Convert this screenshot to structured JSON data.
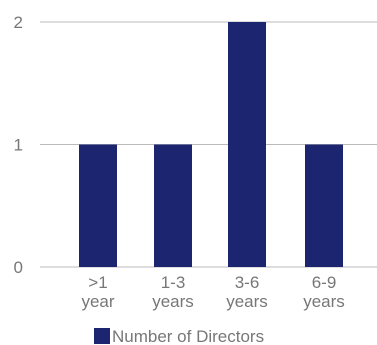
{
  "chart_data": {
    "type": "bar",
    "categories": [
      ">1 year",
      "1-3 years",
      "3-6 years",
      "6-9 years"
    ],
    "category_lines": [
      [
        ">1",
        "year"
      ],
      [
        "1-3",
        "years"
      ],
      [
        "3-6",
        "years"
      ],
      [
        "6-9",
        "years"
      ]
    ],
    "series": [
      {
        "name": "Number of Directors",
        "values": [
          1,
          1,
          2,
          1
        ]
      }
    ],
    "title": "",
    "xlabel": "",
    "ylabel": "",
    "ylim": [
      0,
      2
    ],
    "yticks": [
      0,
      1,
      2
    ],
    "grid": true,
    "legend": "bottom",
    "colors": {
      "bar": "#1c2670",
      "grid": "#bbbbbb",
      "text": "#777777"
    }
  }
}
